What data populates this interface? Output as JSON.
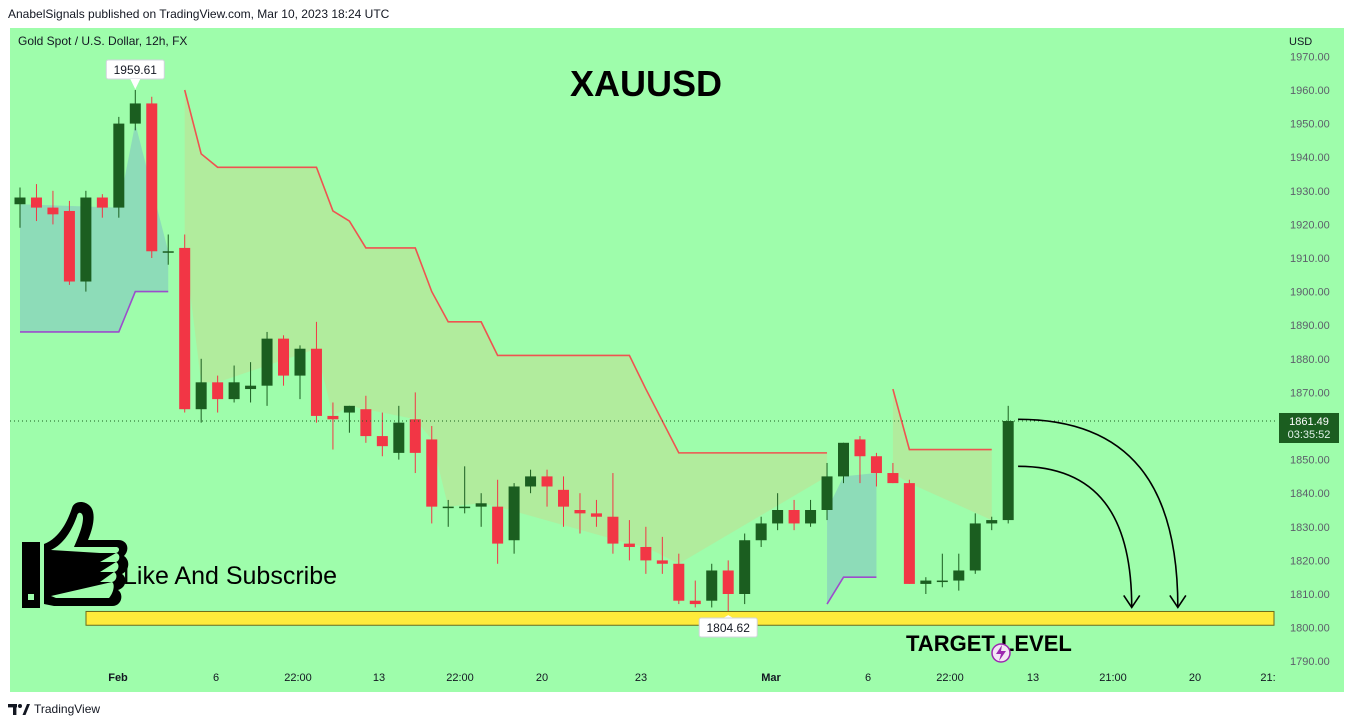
{
  "header": {
    "publisher_line": "AnabelSignals published on TradingView.com, Mar 10, 2023 18:24 UTC"
  },
  "footer": {
    "brand": "TradingView"
  },
  "chart_data": {
    "type": "candlestick",
    "symbol_label": "Gold Spot / U.S. Dollar, 12h, FX",
    "title": "XAUUSD",
    "currency": "USD",
    "y_range": [
      1788,
      1975
    ],
    "y_ticks": [
      "1970.00",
      "1960.00",
      "1950.00",
      "1940.00",
      "1930.00",
      "1920.00",
      "1910.00",
      "1900.00",
      "1890.00",
      "1880.00",
      "1870.00",
      "1860.00",
      "1850.00",
      "1840.00",
      "1830.00",
      "1820.00",
      "1810.00",
      "1800.00",
      "1790.00"
    ],
    "x_ticks": [
      "Feb",
      "6",
      "22:00",
      "13",
      "22:00",
      "20",
      "23",
      "Mar",
      "6",
      "22:00",
      "13",
      "21:00",
      "20",
      "21:"
    ],
    "last_price": "1861.49",
    "countdown": "03:35:52",
    "high_marker": "1959.61",
    "low_marker": "1804.62",
    "target_level": {
      "label": "TARGET LEVEL",
      "from": 1800.7,
      "to": 1804.8
    },
    "annotation_text": "Like And Subscribe",
    "up_color": "#1b5e20",
    "down_color": "#f23645",
    "candles": [
      {
        "o": 1926,
        "h": 1931,
        "l": 1919,
        "c": 1928
      },
      {
        "o": 1928,
        "h": 1932,
        "l": 1921,
        "c": 1925
      },
      {
        "o": 1925,
        "h": 1930,
        "l": 1920,
        "c": 1923
      },
      {
        "o": 1924,
        "h": 1927,
        "l": 1902,
        "c": 1903
      },
      {
        "o": 1903,
        "h": 1930,
        "l": 1900,
        "c": 1928
      },
      {
        "o": 1928,
        "h": 1929,
        "l": 1922,
        "c": 1925
      },
      {
        "o": 1925,
        "h": 1952,
        "l": 1922,
        "c": 1950
      },
      {
        "o": 1950,
        "h": 1960,
        "l": 1948,
        "c": 1956
      },
      {
        "o": 1956,
        "h": 1958,
        "l": 1910,
        "c": 1912
      },
      {
        "o": 1912,
        "h": 1917,
        "l": 1908,
        "c": 1912
      },
      {
        "o": 1913,
        "h": 1917,
        "l": 1864,
        "c": 1865
      },
      {
        "o": 1865,
        "h": 1880,
        "l": 1861,
        "c": 1873
      },
      {
        "o": 1873,
        "h": 1875,
        "l": 1864,
        "c": 1868
      },
      {
        "o": 1868,
        "h": 1878,
        "l": 1867,
        "c": 1873
      },
      {
        "o": 1871,
        "h": 1879,
        "l": 1867,
        "c": 1872
      },
      {
        "o": 1872,
        "h": 1888,
        "l": 1866,
        "c": 1886
      },
      {
        "o": 1886,
        "h": 1887,
        "l": 1872,
        "c": 1875
      },
      {
        "o": 1875,
        "h": 1884,
        "l": 1868,
        "c": 1883
      },
      {
        "o": 1883,
        "h": 1891,
        "l": 1861,
        "c": 1863
      },
      {
        "o": 1863,
        "h": 1867,
        "l": 1853,
        "c": 1862
      },
      {
        "o": 1864,
        "h": 1866,
        "l": 1858,
        "c": 1866
      },
      {
        "o": 1865,
        "h": 1869,
        "l": 1855,
        "c": 1857
      },
      {
        "o": 1857,
        "h": 1864,
        "l": 1851,
        "c": 1854
      },
      {
        "o": 1852,
        "h": 1866,
        "l": 1850,
        "c": 1861
      },
      {
        "o": 1862,
        "h": 1870,
        "l": 1846,
        "c": 1852
      },
      {
        "o": 1856,
        "h": 1860,
        "l": 1831,
        "c": 1836
      },
      {
        "o": 1836,
        "h": 1838,
        "l": 1830,
        "c": 1836
      },
      {
        "o": 1836,
        "h": 1848,
        "l": 1834,
        "c": 1836
      },
      {
        "o": 1836,
        "h": 1840,
        "l": 1830,
        "c": 1837
      },
      {
        "o": 1836,
        "h": 1844,
        "l": 1819,
        "c": 1825
      },
      {
        "o": 1826,
        "h": 1843,
        "l": 1822,
        "c": 1842
      },
      {
        "o": 1842,
        "h": 1847,
        "l": 1840,
        "c": 1845
      },
      {
        "o": 1845,
        "h": 1847,
        "l": 1836,
        "c": 1842
      },
      {
        "o": 1841,
        "h": 1845,
        "l": 1830,
        "c": 1836
      },
      {
        "o": 1835,
        "h": 1840,
        "l": 1828,
        "c": 1834
      },
      {
        "o": 1834,
        "h": 1838,
        "l": 1830,
        "c": 1833
      },
      {
        "o": 1833,
        "h": 1846,
        "l": 1822,
        "c": 1825
      },
      {
        "o": 1825,
        "h": 1832,
        "l": 1820,
        "c": 1824
      },
      {
        "o": 1824,
        "h": 1830,
        "l": 1816,
        "c": 1820
      },
      {
        "o": 1820,
        "h": 1827,
        "l": 1816,
        "c": 1819
      },
      {
        "o": 1819,
        "h": 1822,
        "l": 1807,
        "c": 1808
      },
      {
        "o": 1808,
        "h": 1814,
        "l": 1806,
        "c": 1807
      },
      {
        "o": 1808,
        "h": 1819,
        "l": 1806,
        "c": 1817
      },
      {
        "o": 1817,
        "h": 1820,
        "l": 1804.6,
        "c": 1810
      },
      {
        "o": 1810,
        "h": 1828,
        "l": 1807,
        "c": 1826
      },
      {
        "o": 1826,
        "h": 1833,
        "l": 1824,
        "c": 1831
      },
      {
        "o": 1831,
        "h": 1840,
        "l": 1829,
        "c": 1835
      },
      {
        "o": 1835,
        "h": 1838,
        "l": 1829,
        "c": 1831
      },
      {
        "o": 1831,
        "h": 1838,
        "l": 1830,
        "c": 1835
      },
      {
        "o": 1835,
        "h": 1849,
        "l": 1832,
        "c": 1845
      },
      {
        "o": 1845,
        "h": 1855,
        "l": 1843,
        "c": 1855
      },
      {
        "o": 1856,
        "h": 1857,
        "l": 1843,
        "c": 1851
      },
      {
        "o": 1851,
        "h": 1852,
        "l": 1842,
        "c": 1846
      },
      {
        "o": 1846,
        "h": 1849,
        "l": 1843,
        "c": 1843
      },
      {
        "o": 1843,
        "h": 1844,
        "l": 1813,
        "c": 1813
      },
      {
        "o": 1813,
        "h": 1815,
        "l": 1810,
        "c": 1814
      },
      {
        "o": 1814,
        "h": 1822,
        "l": 1812,
        "c": 1814
      },
      {
        "o": 1814,
        "h": 1822,
        "l": 1811,
        "c": 1817
      },
      {
        "o": 1817,
        "h": 1834,
        "l": 1816,
        "c": 1831
      },
      {
        "o": 1831,
        "h": 1833,
        "l": 1829,
        "c": 1832
      },
      {
        "o": 1832,
        "h": 1866,
        "l": 1831,
        "c": 1861.49
      }
    ],
    "supertrend": [
      {
        "side": "up",
        "points": [
          [
            0,
            1888
          ],
          [
            6,
            1888
          ],
          [
            7,
            1900
          ],
          [
            9,
            1900
          ]
        ]
      },
      {
        "side": "down",
        "points": [
          [
            10,
            1960
          ],
          [
            11,
            1941
          ],
          [
            12,
            1937
          ],
          [
            18,
            1937
          ],
          [
            19,
            1924
          ],
          [
            20,
            1921
          ],
          [
            21,
            1913
          ],
          [
            24,
            1913
          ],
          [
            25,
            1900
          ],
          [
            26,
            1891
          ],
          [
            28,
            1891
          ],
          [
            29,
            1881
          ],
          [
            37,
            1881
          ],
          [
            38,
            1871
          ],
          [
            40,
            1852
          ],
          [
            49,
            1852
          ]
        ]
      },
      {
        "side": "up",
        "points": [
          [
            49,
            1807
          ],
          [
            50,
            1815
          ],
          [
            52,
            1815
          ]
        ]
      },
      {
        "side": "down",
        "points": [
          [
            53,
            1871
          ],
          [
            54,
            1853
          ],
          [
            59,
            1853
          ]
        ]
      }
    ],
    "arrows": [
      {
        "from_index": 60.6,
        "from_price": 1862,
        "to_index": 70.3,
        "to_price": 1806
      },
      {
        "from_index": 60.6,
        "from_price": 1848,
        "to_index": 67.5,
        "to_price": 1806
      }
    ]
  }
}
